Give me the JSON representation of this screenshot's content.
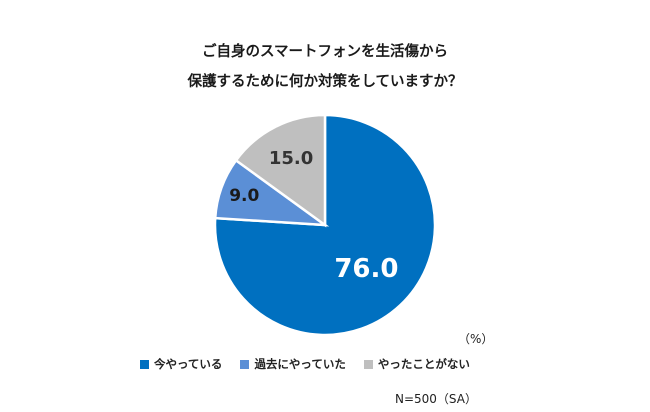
{
  "title_lines": [
    "ご自身のスマートフォンを生活傷から",
    "保護するために何か対策をしていますか？"
  ],
  "unit_label": "（%）",
  "sample_label": "N=500（SA）",
  "colors": [
    "#0070c0",
    "#5b8fd6",
    "#bfbfbf"
  ],
  "chart_data": {
    "type": "pie",
    "categories": [
      "今やっている",
      "過去にやっていた",
      "やったことがない"
    ],
    "values": [
      76.0,
      9.0,
      15.0
    ],
    "data_labels": [
      "76.0",
      "9.0",
      "15.0"
    ],
    "title": "ご自身のスマートフォンを生活傷から保護するために何か対策をしていますか？",
    "legend_position": "bottom"
  }
}
